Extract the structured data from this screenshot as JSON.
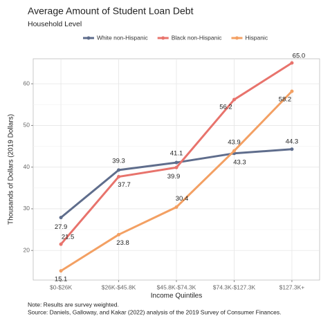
{
  "chart_data": {
    "type": "line",
    "title": "Average Amount of Student Loan Debt",
    "subtitle": "Household Level",
    "x_label": "Income Quintiles",
    "y_label": "Thousands of Dollars (2019 Dollars)",
    "notes": [
      "Note: Results are survey weighted.",
      "Source: Daniels, Galloway, and Kakar (2022) analysis of the 2019 Survey of Consumer Finances."
    ],
    "categories": [
      "$0-$26K",
      "$26K-$45.8K",
      "$45.8K-$74.3K",
      "$74.3K-$127.3K",
      "$127.3K+"
    ],
    "series": [
      {
        "name": "White non-Hispanic",
        "color": "#5f6d8c",
        "values": [
          27.9,
          39.3,
          41.1,
          43.3,
          44.3
        ]
      },
      {
        "name": "Black non-Hispanic",
        "color": "#e8736c",
        "values": [
          21.5,
          37.7,
          39.9,
          56.2,
          65.0
        ],
        "value_labels": [
          "21.5",
          "37.7",
          "39.9",
          "56.2",
          "65.0"
        ]
      },
      {
        "name": "Hispanic",
        "color": "#f3a063",
        "values": [
          15.1,
          23.8,
          30.4,
          43.9,
          58.2
        ]
      }
    ],
    "ylim": [
      12.9,
      66
    ],
    "yticks": [
      20,
      30,
      40,
      50,
      60
    ],
    "grid": true,
    "legend": "top"
  }
}
